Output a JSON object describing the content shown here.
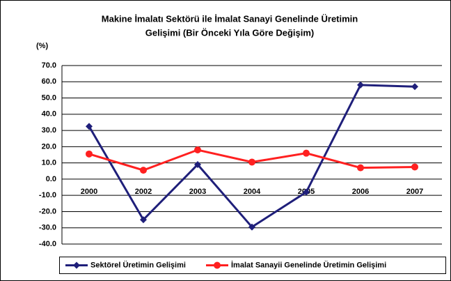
{
  "chart_data": {
    "type": "line",
    "title": [
      "Makine İmalatı Sektörü ile İmalat Sanayi Genelinde Üretimin",
      "Gelişimi (Bir Önceki Yıla Göre Değişim)"
    ],
    "y_axis_label": "(%)",
    "categories": [
      "2000",
      "2002",
      "2003",
      "2004",
      "2005",
      "2006",
      "2007"
    ],
    "series": [
      {
        "name": "Sektörel Üretimin Gelişimi",
        "color": "#1f1f7a",
        "marker": "diamond",
        "values": [
          32.5,
          -25,
          9,
          -29.5,
          -8,
          58,
          57
        ]
      },
      {
        "name": "İmalat Sanayii Genelinde Üretimin Gelişimi",
        "color": "#ff2020",
        "marker": "circle",
        "values": [
          15.5,
          5.5,
          18,
          10.5,
          16,
          7,
          7.5
        ]
      }
    ],
    "ylim": [
      -40,
      70
    ],
    "yticks": [
      {
        "value": -40,
        "label": "-40.0"
      },
      {
        "value": -30,
        "label": "-30.0"
      },
      {
        "value": -20,
        "label": "-20.0"
      },
      {
        "value": -10,
        "label": "-10.0"
      },
      {
        "value": 0,
        "label": "0.0"
      },
      {
        "value": 10,
        "label": "10.0"
      },
      {
        "value": 20,
        "label": "20.0"
      },
      {
        "value": 30,
        "label": "30.0"
      },
      {
        "value": 40,
        "label": "40.0"
      },
      {
        "value": 50,
        "label": "50.0"
      },
      {
        "value": 60,
        "label": "60.0"
      },
      {
        "value": 70,
        "label": "70.0"
      }
    ],
    "grid": true,
    "legend": "bottom"
  }
}
